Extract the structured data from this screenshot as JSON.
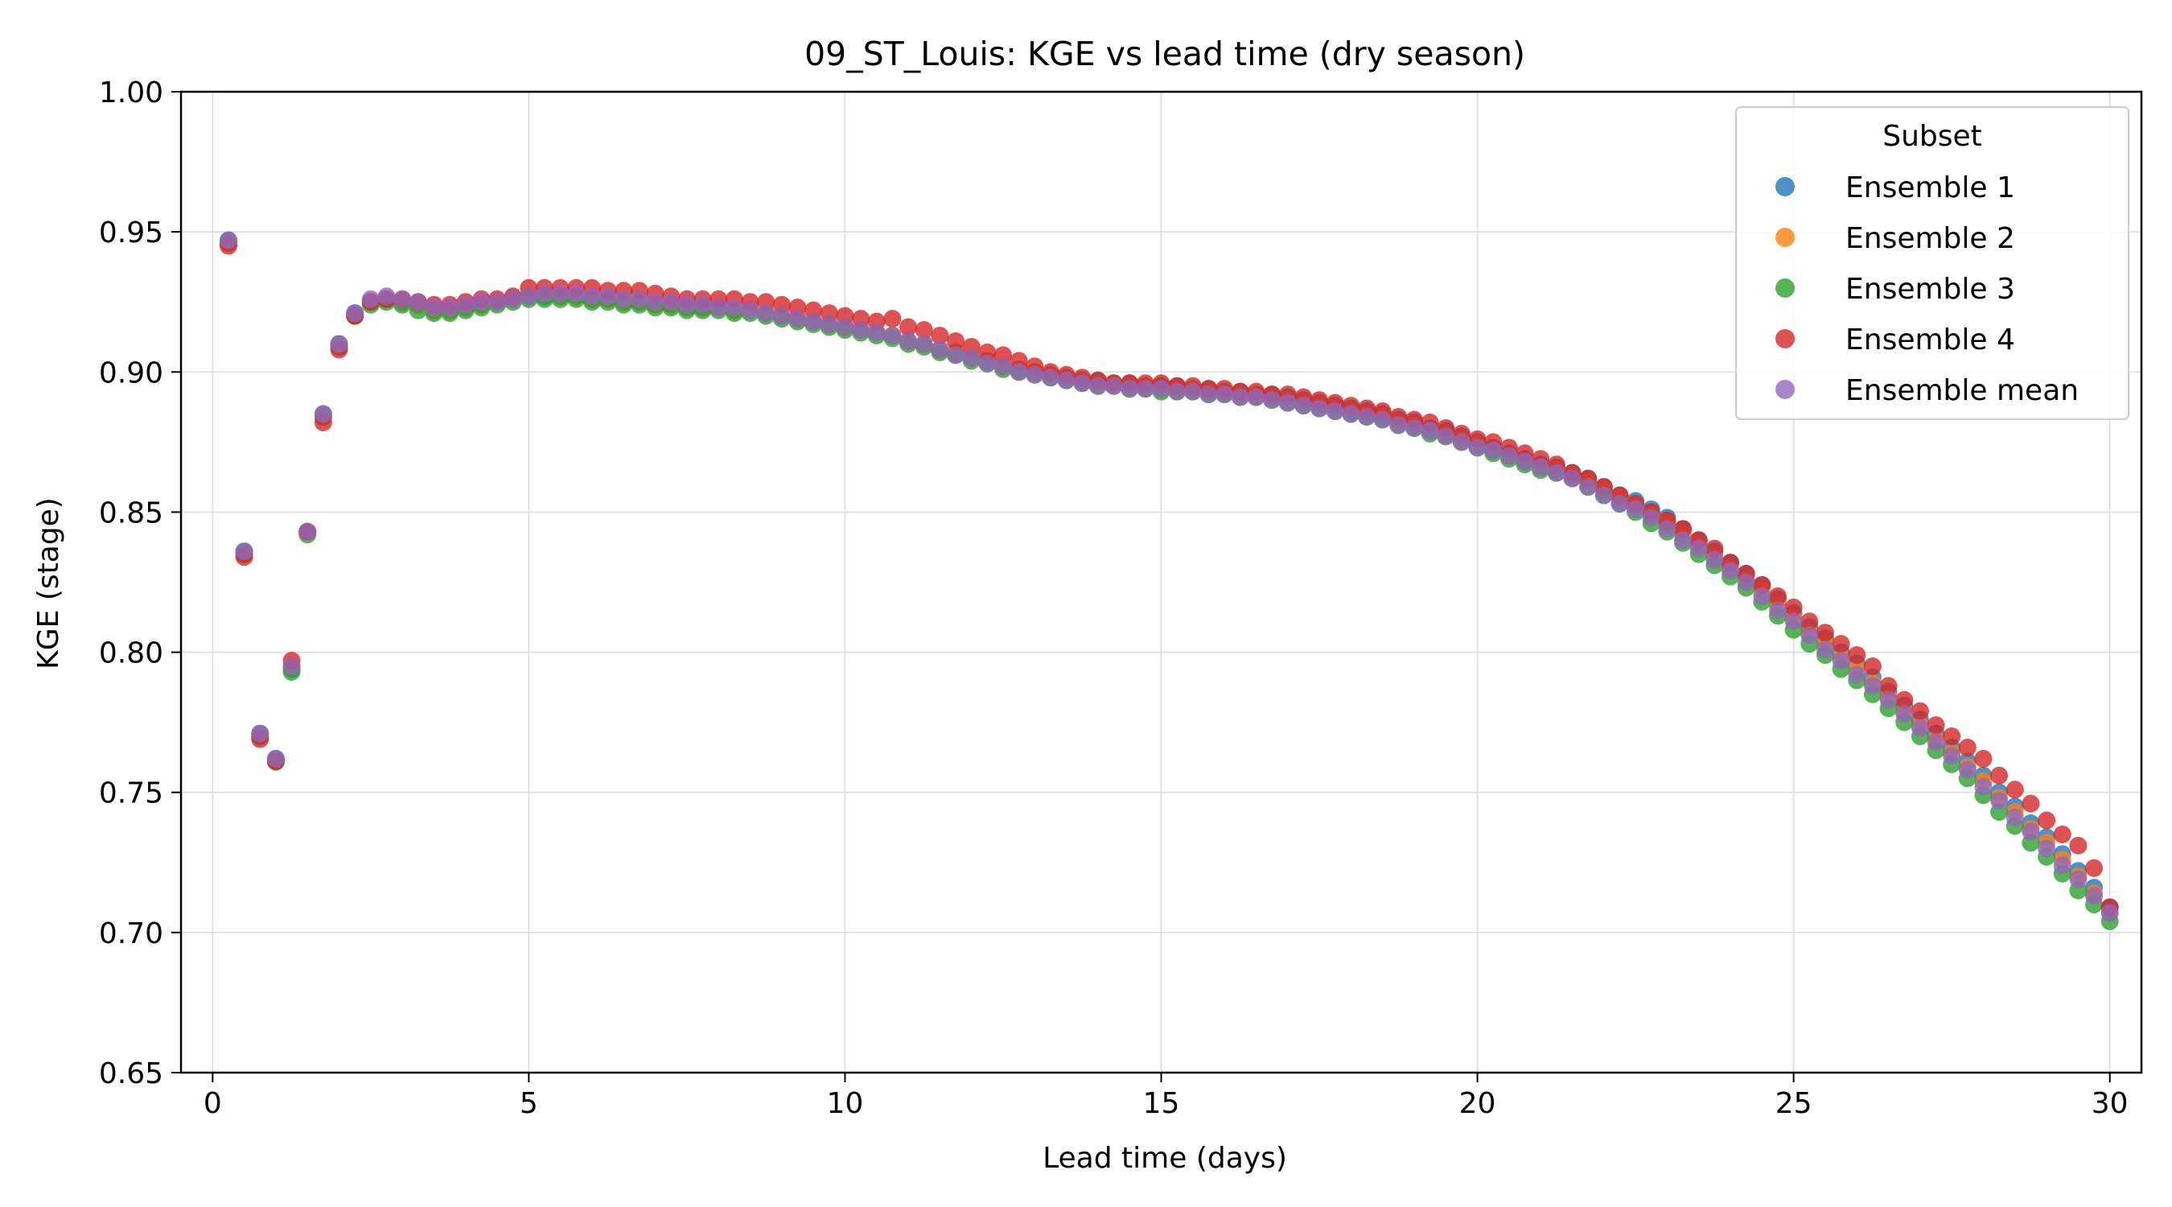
{
  "chart_data": {
    "type": "scatter",
    "title": "09_ST_Louis: KGE vs lead time (dry season)",
    "xlabel": "Lead time (days)",
    "ylabel": "KGE (stage)",
    "xlim": [
      -0.5,
      30.5
    ],
    "ylim": [
      0.65,
      1.0
    ],
    "xticks": [
      0,
      5,
      10,
      15,
      20,
      25,
      30
    ],
    "xtick_labels": [
      "0",
      "5",
      "10",
      "15",
      "20",
      "25",
      "30"
    ],
    "yticks": [
      0.65,
      0.7,
      0.75,
      0.8,
      0.85,
      0.9,
      0.95,
      1.0
    ],
    "ytick_labels": [
      "0.65",
      "0.70",
      "0.75",
      "0.80",
      "0.85",
      "0.90",
      "0.95",
      "1.00"
    ],
    "grid": true,
    "legend": {
      "title": "Subset",
      "placement": "top-right"
    },
    "x_step_days": 0.25,
    "x_start_days": 0.25,
    "series": [
      {
        "name": "Ensemble 1",
        "color": "#1f77b4",
        "values": [
          0.947,
          0.836,
          0.771,
          0.762,
          0.794,
          0.843,
          0.885,
          0.91,
          0.921,
          0.925,
          0.926,
          0.925,
          0.924,
          0.922,
          0.922,
          0.923,
          0.924,
          0.925,
          0.926,
          0.927,
          0.927,
          0.927,
          0.927,
          0.926,
          0.926,
          0.925,
          0.925,
          0.924,
          0.924,
          0.923,
          0.923,
          0.923,
          0.922,
          0.922,
          0.921,
          0.92,
          0.919,
          0.918,
          0.917,
          0.916,
          0.915,
          0.914,
          0.913,
          0.911,
          0.91,
          0.908,
          0.907,
          0.905,
          0.904,
          0.902,
          0.901,
          0.9,
          0.899,
          0.898,
          0.897,
          0.897,
          0.896,
          0.896,
          0.895,
          0.895,
          0.895,
          0.894,
          0.894,
          0.893,
          0.893,
          0.892,
          0.892,
          0.891,
          0.89,
          0.889,
          0.888,
          0.887,
          0.886,
          0.885,
          0.883,
          0.882,
          0.88,
          0.879,
          0.877,
          0.875,
          0.873,
          0.871,
          0.869,
          0.867,
          0.866,
          0.864,
          0.862,
          0.859,
          0.856,
          0.854,
          0.851,
          0.848,
          0.844,
          0.84,
          0.836,
          0.832,
          0.828,
          0.824,
          0.819,
          0.814,
          0.809,
          0.805,
          0.8,
          0.796,
          0.791,
          0.786,
          0.781,
          0.776,
          0.771,
          0.766,
          0.761,
          0.756,
          0.75,
          0.745,
          0.739,
          0.734,
          0.728,
          0.722,
          0.716,
          0.709
        ]
      },
      {
        "name": "Ensemble 2",
        "color": "#ff7f0e",
        "values": [
          0.946,
          0.835,
          0.77,
          0.761,
          0.795,
          0.843,
          0.884,
          0.909,
          0.92,
          0.925,
          0.926,
          0.925,
          0.924,
          0.922,
          0.922,
          0.923,
          0.924,
          0.925,
          0.926,
          0.927,
          0.928,
          0.927,
          0.927,
          0.926,
          0.926,
          0.925,
          0.925,
          0.924,
          0.924,
          0.923,
          0.923,
          0.923,
          0.922,
          0.922,
          0.921,
          0.92,
          0.919,
          0.918,
          0.917,
          0.916,
          0.915,
          0.914,
          0.913,
          0.911,
          0.91,
          0.908,
          0.907,
          0.905,
          0.904,
          0.902,
          0.901,
          0.9,
          0.899,
          0.898,
          0.897,
          0.896,
          0.896,
          0.895,
          0.895,
          0.894,
          0.894,
          0.894,
          0.893,
          0.893,
          0.892,
          0.892,
          0.891,
          0.89,
          0.889,
          0.888,
          0.887,
          0.886,
          0.885,
          0.884,
          0.882,
          0.881,
          0.879,
          0.878,
          0.876,
          0.874,
          0.872,
          0.87,
          0.868,
          0.866,
          0.865,
          0.863,
          0.861,
          0.858,
          0.855,
          0.852,
          0.849,
          0.846,
          0.842,
          0.838,
          0.834,
          0.83,
          0.826,
          0.822,
          0.817,
          0.812,
          0.807,
          0.803,
          0.798,
          0.794,
          0.789,
          0.784,
          0.779,
          0.774,
          0.769,
          0.764,
          0.759,
          0.754,
          0.748,
          0.743,
          0.737,
          0.732,
          0.726,
          0.72,
          0.714,
          0.707
        ]
      },
      {
        "name": "Ensemble 3",
        "color": "#2ca02c",
        "values": [
          0.946,
          0.835,
          0.77,
          0.761,
          0.793,
          0.842,
          0.884,
          0.909,
          0.92,
          0.924,
          0.925,
          0.924,
          0.922,
          0.921,
          0.921,
          0.922,
          0.923,
          0.924,
          0.925,
          0.926,
          0.926,
          0.926,
          0.926,
          0.925,
          0.925,
          0.924,
          0.924,
          0.923,
          0.923,
          0.922,
          0.922,
          0.922,
          0.921,
          0.921,
          0.92,
          0.919,
          0.918,
          0.917,
          0.916,
          0.915,
          0.914,
          0.913,
          0.912,
          0.91,
          0.909,
          0.907,
          0.906,
          0.904,
          0.903,
          0.901,
          0.9,
          0.899,
          0.898,
          0.897,
          0.896,
          0.895,
          0.895,
          0.894,
          0.894,
          0.893,
          0.893,
          0.893,
          0.892,
          0.892,
          0.891,
          0.891,
          0.89,
          0.889,
          0.888,
          0.887,
          0.886,
          0.885,
          0.884,
          0.883,
          0.881,
          0.88,
          0.878,
          0.877,
          0.875,
          0.873,
          0.871,
          0.869,
          0.867,
          0.865,
          0.864,
          0.862,
          0.859,
          0.856,
          0.853,
          0.85,
          0.846,
          0.843,
          0.839,
          0.835,
          0.831,
          0.827,
          0.823,
          0.818,
          0.813,
          0.808,
          0.803,
          0.799,
          0.794,
          0.79,
          0.785,
          0.78,
          0.775,
          0.77,
          0.765,
          0.76,
          0.755,
          0.749,
          0.743,
          0.738,
          0.732,
          0.727,
          0.721,
          0.715,
          0.71,
          0.704
        ]
      },
      {
        "name": "Ensemble 4",
        "color": "#d62728",
        "values": [
          0.945,
          0.834,
          0.769,
          0.761,
          0.797,
          0.843,
          0.882,
          0.908,
          0.92,
          0.925,
          0.926,
          0.926,
          0.925,
          0.924,
          0.924,
          0.925,
          0.926,
          0.926,
          0.927,
          0.93,
          0.93,
          0.93,
          0.93,
          0.93,
          0.929,
          0.929,
          0.929,
          0.928,
          0.927,
          0.926,
          0.926,
          0.926,
          0.926,
          0.925,
          0.925,
          0.924,
          0.923,
          0.922,
          0.921,
          0.92,
          0.919,
          0.918,
          0.919,
          0.916,
          0.915,
          0.913,
          0.911,
          0.909,
          0.907,
          0.906,
          0.904,
          0.902,
          0.9,
          0.899,
          0.898,
          0.897,
          0.896,
          0.896,
          0.896,
          0.896,
          0.895,
          0.895,
          0.894,
          0.894,
          0.893,
          0.893,
          0.892,
          0.892,
          0.891,
          0.89,
          0.889,
          0.888,
          0.887,
          0.886,
          0.884,
          0.883,
          0.882,
          0.88,
          0.878,
          0.876,
          0.875,
          0.873,
          0.871,
          0.869,
          0.867,
          0.864,
          0.862,
          0.859,
          0.856,
          0.853,
          0.85,
          0.847,
          0.844,
          0.84,
          0.837,
          0.832,
          0.828,
          0.824,
          0.82,
          0.816,
          0.811,
          0.807,
          0.803,
          0.799,
          0.795,
          0.788,
          0.783,
          0.779,
          0.774,
          0.77,
          0.766,
          0.762,
          0.756,
          0.751,
          0.746,
          0.74,
          0.735,
          0.731,
          0.723,
          0.709
        ]
      },
      {
        "name": "Ensemble mean",
        "color": "#9467bd",
        "values": [
          0.947,
          0.836,
          0.771,
          0.762,
          0.795,
          0.843,
          0.885,
          0.91,
          0.921,
          0.926,
          0.927,
          0.926,
          0.925,
          0.923,
          0.923,
          0.924,
          0.925,
          0.925,
          0.926,
          0.927,
          0.928,
          0.928,
          0.928,
          0.927,
          0.927,
          0.926,
          0.926,
          0.925,
          0.925,
          0.924,
          0.924,
          0.923,
          0.923,
          0.922,
          0.921,
          0.92,
          0.919,
          0.918,
          0.917,
          0.916,
          0.915,
          0.914,
          0.913,
          0.911,
          0.91,
          0.908,
          0.906,
          0.905,
          0.903,
          0.902,
          0.9,
          0.899,
          0.898,
          0.897,
          0.896,
          0.895,
          0.895,
          0.894,
          0.894,
          0.894,
          0.893,
          0.893,
          0.892,
          0.892,
          0.891,
          0.891,
          0.89,
          0.889,
          0.888,
          0.887,
          0.886,
          0.885,
          0.884,
          0.883,
          0.881,
          0.88,
          0.879,
          0.877,
          0.875,
          0.873,
          0.872,
          0.87,
          0.868,
          0.866,
          0.864,
          0.862,
          0.859,
          0.856,
          0.853,
          0.851,
          0.848,
          0.844,
          0.84,
          0.837,
          0.833,
          0.829,
          0.825,
          0.82,
          0.815,
          0.811,
          0.806,
          0.801,
          0.797,
          0.792,
          0.788,
          0.783,
          0.778,
          0.773,
          0.768,
          0.763,
          0.758,
          0.752,
          0.747,
          0.741,
          0.736,
          0.73,
          0.724,
          0.719,
          0.713,
          0.707
        ]
      }
    ]
  }
}
